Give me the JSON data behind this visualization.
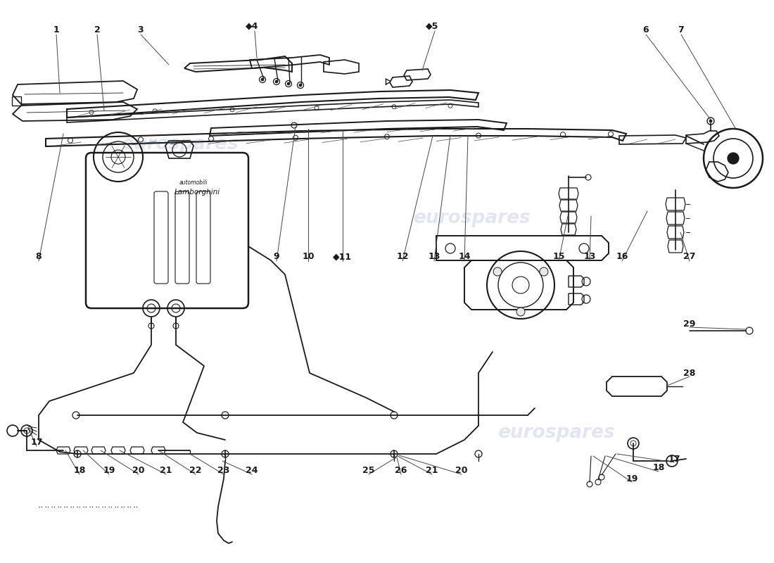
{
  "background": "#ffffff",
  "line_color": "#1a1a1a",
  "watermark_color": "#c8d4e8",
  "fig_w": 11.0,
  "fig_h": 8.0,
  "dpi": 100,
  "top_labels": [
    [
      80,
      757,
      "1"
    ],
    [
      138,
      757,
      "2"
    ],
    [
      200,
      757,
      "3"
    ],
    [
      358,
      763,
      "◆4"
    ],
    [
      614,
      763,
      "◆5"
    ],
    [
      918,
      757,
      "6"
    ],
    [
      968,
      757,
      "7"
    ]
  ],
  "mid_labels": [
    [
      55,
      435,
      "8"
    ],
    [
      393,
      435,
      "9"
    ],
    [
      438,
      435,
      "10"
    ],
    [
      487,
      435,
      "◆11"
    ],
    [
      572,
      435,
      "12"
    ],
    [
      617,
      435,
      "13"
    ],
    [
      660,
      435,
      "14"
    ],
    [
      794,
      435,
      "15"
    ],
    [
      838,
      435,
      "13"
    ],
    [
      884,
      435,
      "16"
    ],
    [
      980,
      435,
      "27"
    ],
    [
      980,
      340,
      "29"
    ],
    [
      980,
      270,
      "28"
    ]
  ],
  "bot_labels": [
    [
      52,
      172,
      "17"
    ],
    [
      113,
      132,
      "18"
    ],
    [
      155,
      132,
      "19"
    ],
    [
      197,
      132,
      "20"
    ],
    [
      236,
      132,
      "21"
    ],
    [
      278,
      132,
      "22"
    ],
    [
      318,
      132,
      "23"
    ],
    [
      358,
      132,
      "24"
    ],
    [
      524,
      132,
      "25"
    ],
    [
      570,
      132,
      "26"
    ],
    [
      614,
      132,
      "21"
    ],
    [
      656,
      132,
      "20"
    ],
    [
      958,
      148,
      "17"
    ],
    [
      936,
      135,
      "18"
    ],
    [
      898,
      120,
      "19"
    ]
  ]
}
